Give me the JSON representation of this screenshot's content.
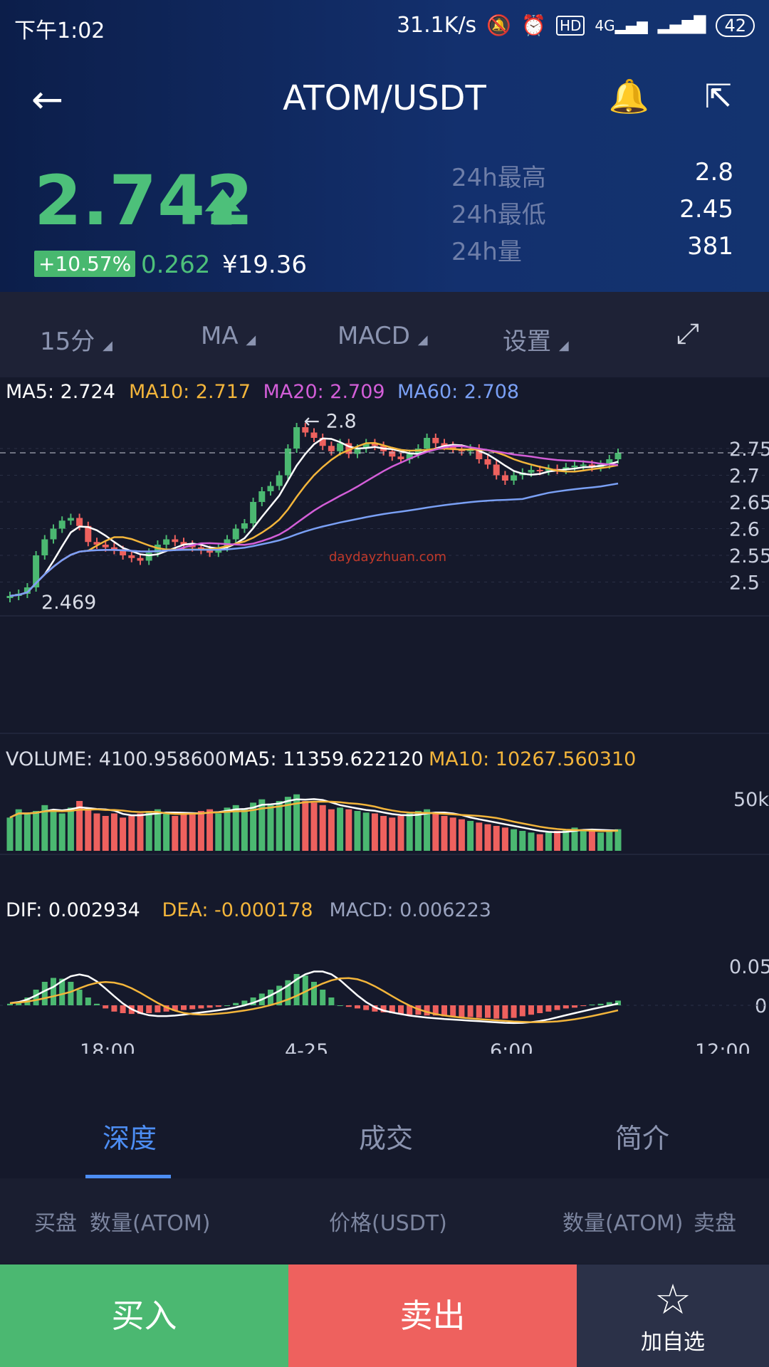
{
  "status": {
    "time": "下午1:02",
    "speed": "31.1K/s",
    "battery": "42",
    "icons": [
      "bell-off-icon",
      "alarm-icon",
      "hd-icon",
      "4g-icon",
      "signal-icon"
    ]
  },
  "nav": {
    "title": "ATOM/USDT",
    "back_icon": "back-arrow-icon",
    "bell_icon": "bell-plus-icon",
    "share_icon": "share-icon"
  },
  "ticker": {
    "price": "2.742",
    "change_pct": "+10.57%",
    "change": "0.262",
    "cny": "¥19.36",
    "stats": [
      {
        "label": "24h最高",
        "value": "2.8"
      },
      {
        "label": "24h最低",
        "value": "2.45"
      },
      {
        "label": "24h量",
        "value": "381"
      }
    ]
  },
  "toolbar": {
    "interval": "15分",
    "indicator": "MA",
    "sub_indicator": "MACD",
    "settings": "设置",
    "expand_icon": "expand-icon"
  },
  "chart_data": {
    "type": "candlestick",
    "ma_legend": [
      {
        "label": "MA5: 2.724",
        "color": "#ffffff"
      },
      {
        "label": "MA10: 2.717",
        "color": "#f3b53b"
      },
      {
        "label": "MA20: 2.709",
        "color": "#d35ed8"
      },
      {
        "label": "MA60: 2.708",
        "color": "#7aa0f5"
      }
    ],
    "price_ticks": [
      "2.75",
      "2.7",
      "2.65",
      "2.6",
      "2.55",
      "2.5"
    ],
    "high_label": "← 2.8",
    "low_label": "2.469",
    "current_price": 2.742,
    "watermark": "daydayzhuan.com",
    "volume_legend": [
      {
        "label": "VOLUME: 4100.958600",
        "color": "#d9dce6"
      },
      {
        "label": "MA5: 11359.622120",
        "color": "#ffffff"
      },
      {
        "label": "MA10: 10267.560310",
        "color": "#f3b53b"
      }
    ],
    "volume_tick": "50k",
    "macd_legend": [
      {
        "label": "DIF: 0.002934",
        "color": "#ffffff"
      },
      {
        "label": "DEA: -0.000178",
        "color": "#f3b53b"
      },
      {
        "label": "MACD: 0.006223",
        "color": "#9aa3bf"
      }
    ],
    "macd_ticks": [
      "0.05",
      "0"
    ],
    "time_ticks": [
      "18:00",
      "4-25",
      "6:00",
      "12:00"
    ],
    "close": [
      2.474,
      2.478,
      2.49,
      2.55,
      2.58,
      2.6,
      2.615,
      2.62,
      2.605,
      2.575,
      2.57,
      2.565,
      2.56,
      2.55,
      2.545,
      2.54,
      2.555,
      2.57,
      2.58,
      2.575,
      2.57,
      2.565,
      2.56,
      2.555,
      2.565,
      2.58,
      2.6,
      2.61,
      2.65,
      2.67,
      2.68,
      2.7,
      2.75,
      2.79,
      2.78,
      2.77,
      2.755,
      2.745,
      2.76,
      2.74,
      2.75,
      2.76,
      2.755,
      2.745,
      2.735,
      2.73,
      2.74,
      2.75,
      2.77,
      2.76,
      2.755,
      2.75,
      2.745,
      2.75,
      2.73,
      2.72,
      2.7,
      2.69,
      2.7,
      2.705,
      2.71,
      2.708,
      2.712,
      2.71,
      2.715,
      2.718,
      2.72,
      2.715,
      2.72,
      2.73,
      2.742
    ],
    "volume": [
      0.4,
      0.5,
      0.45,
      0.48,
      0.55,
      0.5,
      0.45,
      0.52,
      0.6,
      0.5,
      0.45,
      0.42,
      0.45,
      0.4,
      0.42,
      0.45,
      0.48,
      0.5,
      0.45,
      0.42,
      0.44,
      0.46,
      0.48,
      0.5,
      0.45,
      0.52,
      0.55,
      0.5,
      0.58,
      0.62,
      0.55,
      0.6,
      0.65,
      0.68,
      0.6,
      0.58,
      0.55,
      0.5,
      0.52,
      0.5,
      0.48,
      0.46,
      0.45,
      0.42,
      0.4,
      0.42,
      0.45,
      0.48,
      0.5,
      0.45,
      0.42,
      0.4,
      0.38,
      0.36,
      0.34,
      0.32,
      0.3,
      0.28,
      0.26,
      0.24,
      0.22,
      0.2,
      0.22,
      0.24,
      0.26,
      0.28,
      0.26,
      0.24,
      0.22,
      0.24,
      0.26
    ],
    "macd": [
      0.002,
      0.004,
      0.01,
      0.02,
      0.03,
      0.035,
      0.034,
      0.03,
      0.02,
      0.01,
      0.002,
      -0.004,
      -0.008,
      -0.01,
      -0.011,
      -0.011,
      -0.01,
      -0.009,
      -0.008,
      -0.007,
      -0.006,
      -0.005,
      -0.004,
      -0.003,
      -0.002,
      0,
      0.003,
      0.006,
      0.01,
      0.015,
      0.02,
      0.025,
      0.032,
      0.04,
      0.038,
      0.03,
      0.02,
      0.01,
      0,
      -0.002,
      -0.004,
      -0.006,
      -0.008,
      -0.009,
      -0.01,
      -0.011,
      -0.012,
      -0.012,
      -0.013,
      -0.013,
      -0.014,
      -0.014,
      -0.015,
      -0.015,
      -0.016,
      -0.016,
      -0.017,
      -0.017,
      -0.016,
      -0.014,
      -0.012,
      -0.01,
      -0.008,
      -0.006,
      -0.004,
      -0.003,
      -0.001,
      0.001,
      0.002,
      0.004,
      0.006
    ]
  },
  "tabs": [
    {
      "label": "深度"
    },
    {
      "label": "成交"
    },
    {
      "label": "简介"
    }
  ],
  "depth_header": {
    "buy": "买盘",
    "buy_qty": "数量(ATOM)",
    "price": "价格(USDT)",
    "sell_qty": "数量(ATOM)",
    "sell": "卖盘"
  },
  "actions": {
    "buy": "买入",
    "sell": "卖出",
    "favorite": "加自选",
    "favorite_icon": "star-plus-icon"
  },
  "colors": {
    "up": "#4bb871",
    "down": "#ee615e",
    "accent": "#4d8ef4"
  }
}
